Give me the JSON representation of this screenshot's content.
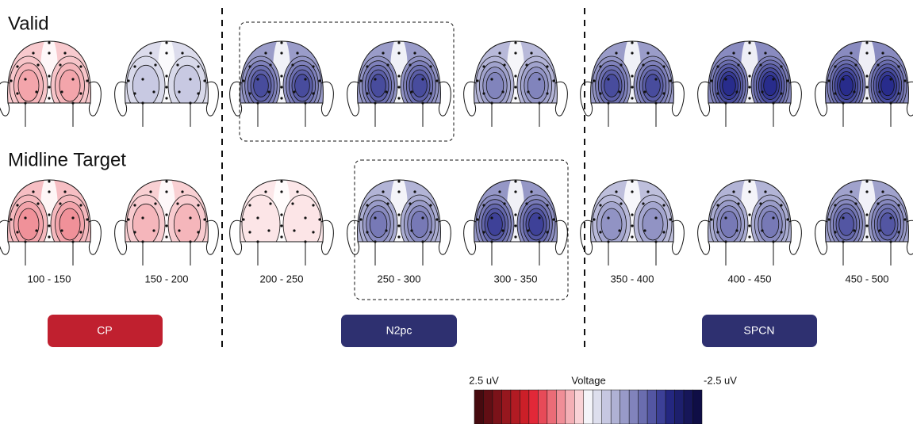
{
  "rows": [
    {
      "label": "Valid"
    },
    {
      "label": "Midline Target"
    }
  ],
  "time_windows": [
    "100 - 150",
    "150 - 200",
    "200 - 250",
    "250 - 300",
    "300 - 350",
    "350 - 400",
    "400 - 450",
    "450 - 500"
  ],
  "components": [
    {
      "label": "CP"
    },
    {
      "label": "N2pc"
    },
    {
      "label": "SPCN"
    }
  ],
  "colorbar": {
    "max_label": "2.5 uV",
    "title": "Voltage",
    "min_label": "-2.5 uV"
  }
}
